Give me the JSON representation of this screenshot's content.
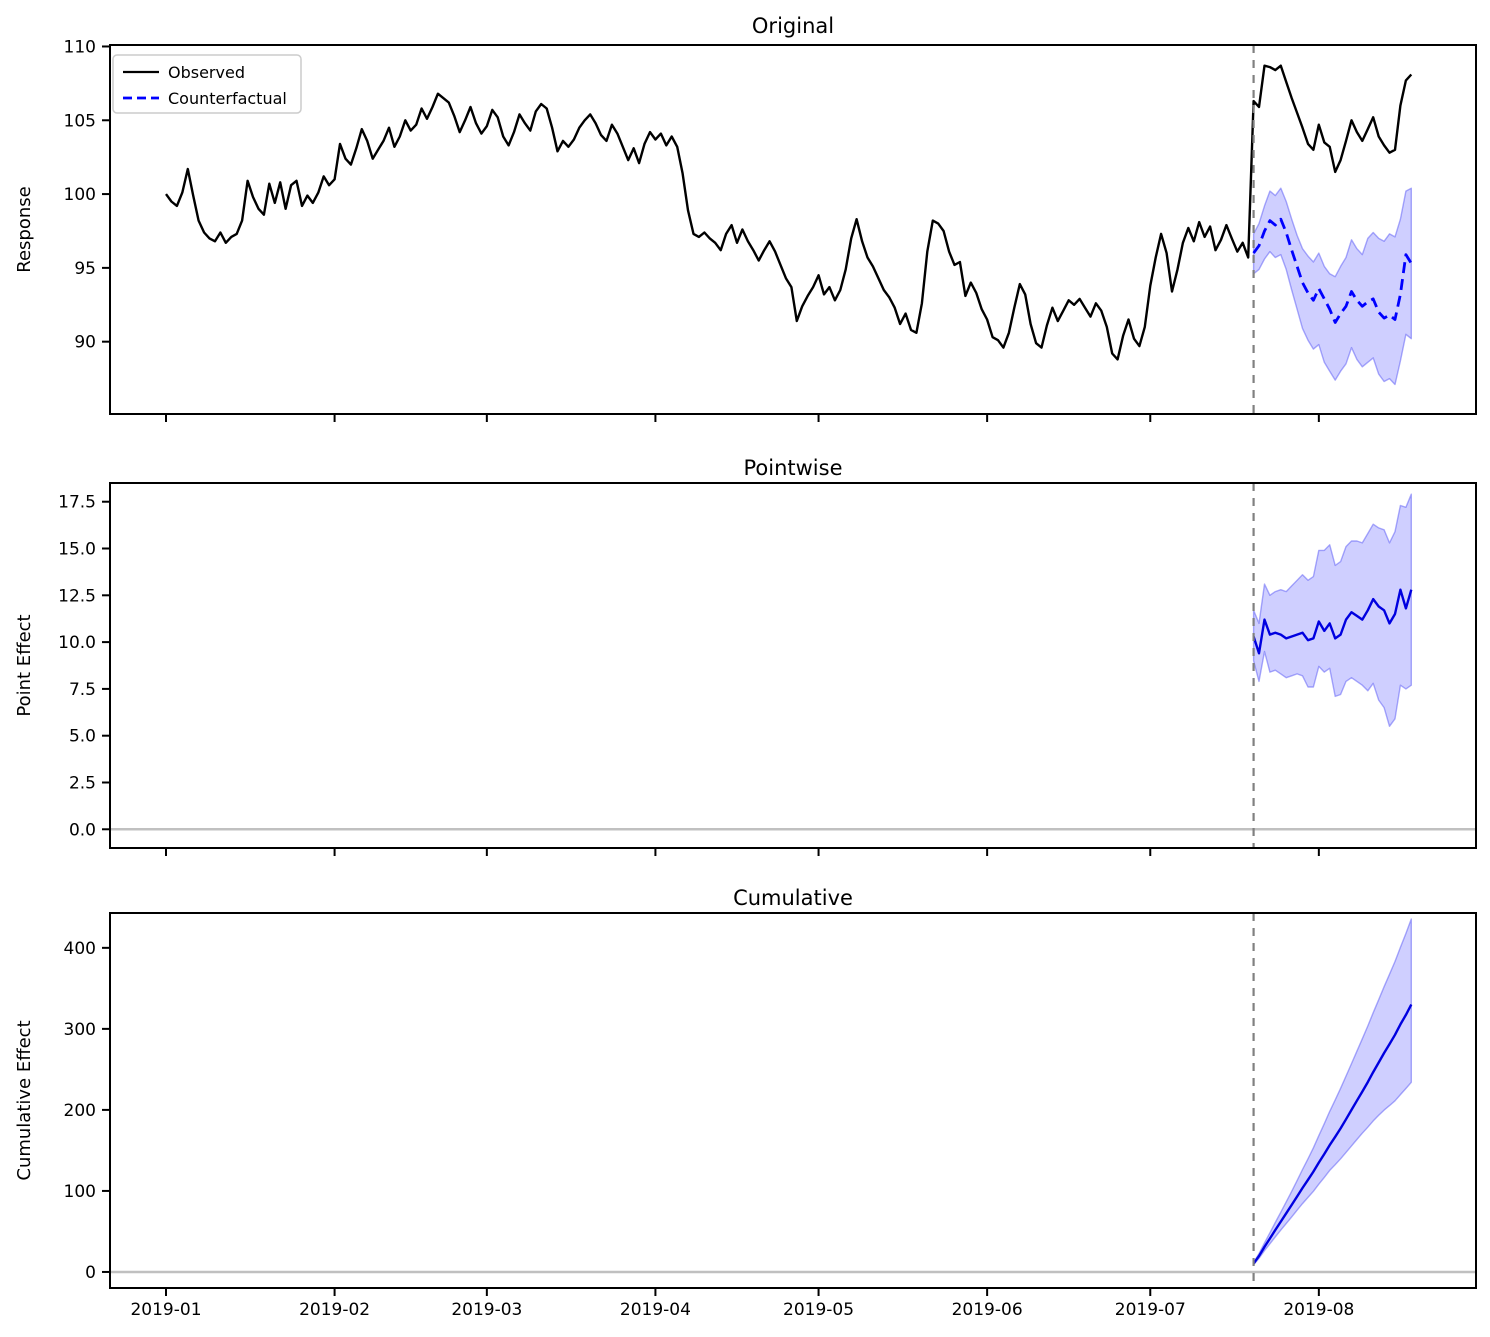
{
  "figure": {
    "kind": "causal-impact-plot",
    "panel_titles": [
      "Original",
      "Pointwise",
      "Cumulative"
    ]
  },
  "chart_data": {
    "type": "line",
    "x_axis": {
      "tick_days": [
        0,
        31,
        59,
        90,
        120,
        151,
        181,
        212
      ],
      "tick_labels": [
        "2019-01",
        "2019-02",
        "2019-03",
        "2019-04",
        "2019-05",
        "2019-06",
        "2019-07",
        "2019-08"
      ],
      "xlim_days": [
        -10.3,
        240.9
      ]
    },
    "intervention_day": 200,
    "colors": {
      "observed": "#000000",
      "counterfactual": "#0000ff",
      "effect": "#0000e0",
      "band": "rgba(0,0,255,0.19)",
      "band_edge": "rgba(70,70,245,0.45)",
      "vline": "#808080",
      "zero_line": "#c0c0c0",
      "frame": "#000000"
    },
    "panels": [
      {
        "title": "Original",
        "ylabel": "Response",
        "ylim": [
          85.1,
          110.1
        ],
        "yticks": [
          90,
          95,
          100,
          105,
          110
        ],
        "ytick_labels": [
          "90",
          "95",
          "100",
          "105",
          "110"
        ],
        "zero_line": false,
        "series": [
          {
            "name": "Observed",
            "role": "observed",
            "style": "solid",
            "color_key": "observed",
            "x_start": 0,
            "values": [
              100.0,
              99.5,
              99.2,
              100.1,
              101.7,
              99.9,
              98.2,
              97.4,
              97.0,
              96.8,
              97.4,
              96.7,
              97.1,
              97.3,
              98.2,
              100.9,
              99.8,
              99.0,
              98.6,
              100.7,
              99.4,
              100.8,
              99.0,
              100.6,
              100.9,
              99.2,
              99.9,
              99.4,
              100.1,
              101.2,
              100.6,
              101.0,
              103.4,
              102.4,
              102.0,
              103.1,
              104.4,
              103.6,
              102.4,
              103.0,
              103.6,
              104.5,
              103.2,
              103.9,
              105.0,
              104.3,
              104.7,
              105.8,
              105.1,
              105.9,
              106.8,
              106.5,
              106.2,
              105.3,
              104.2,
              105.0,
              105.9,
              104.8,
              104.1,
              104.6,
              105.7,
              105.2,
              103.9,
              103.3,
              104.2,
              105.4,
              104.8,
              104.3,
              105.6,
              106.1,
              105.8,
              104.5,
              102.9,
              103.6,
              103.2,
              103.7,
              104.5,
              105.0,
              105.4,
              104.8,
              104.0,
              103.6,
              104.7,
              104.1,
              103.2,
              102.3,
              103.1,
              102.1,
              103.4,
              104.2,
              103.7,
              104.1,
              103.3,
              103.9,
              103.2,
              101.4,
              98.9,
              97.3,
              97.1,
              97.4,
              97.0,
              96.7,
              96.2,
              97.3,
              97.9,
              96.7,
              97.6,
              96.8,
              96.2,
              95.5,
              96.2,
              96.8,
              96.1,
              95.2,
              94.3,
              93.7,
              91.4,
              92.4,
              93.1,
              93.7,
              94.5,
              93.2,
              93.7,
              92.8,
              93.5,
              94.9,
              97.0,
              98.3,
              96.8,
              95.7,
              95.1,
              94.3,
              93.5,
              93.0,
              92.3,
              91.2,
              91.9,
              90.8,
              90.6,
              92.6,
              96.1,
              98.2,
              98.0,
              97.5,
              96.1,
              95.2,
              95.4,
              93.1,
              94.0,
              93.3,
              92.2,
              91.5,
              90.3,
              90.1,
              89.6,
              90.6,
              92.3,
              93.9,
              93.2,
              91.2,
              89.9,
              89.6,
              91.1,
              92.3,
              91.4,
              92.1,
              92.8,
              92.5,
              92.9,
              92.3,
              91.7,
              92.6,
              92.1,
              91.0,
              89.2,
              88.8,
              90.4,
              91.5,
              90.2,
              89.7,
              91.0,
              93.8,
              95.7,
              97.3,
              96.0,
              93.4,
              94.9,
              96.7,
              97.7,
              96.8,
              98.1,
              97.1,
              97.8,
              96.2,
              96.9,
              97.9,
              97.0,
              96.1,
              96.7,
              95.7,
              106.3,
              105.9,
              108.7,
              108.6,
              108.4,
              108.7,
              107.6,
              106.5,
              105.5,
              104.5,
              103.4,
              103.0,
              104.7,
              103.5,
              103.2,
              101.5,
              102.3,
              103.6,
              105.0,
              104.2,
              103.6,
              104.4,
              105.2,
              103.9,
              103.3,
              102.8,
              103.0,
              106.0,
              107.7,
              108.1
            ]
          },
          {
            "name": "Counterfactual",
            "role": "counterfactual",
            "style": "dashed",
            "color_key": "counterfactual",
            "x_start": 200,
            "values": [
              96.0,
              96.5,
              97.5,
              98.2,
              97.9,
              98.3,
              97.4,
              96.2,
              95.1,
              94.0,
              93.3,
              92.8,
              93.6,
              92.9,
              92.2,
              91.3,
              91.9,
              92.4,
              93.4,
              92.8,
              92.4,
              92.7,
              92.9,
              92.0,
              91.6,
              91.8,
              91.5,
              93.2,
              95.9,
              95.3
            ]
          }
        ],
        "band": {
          "x_start": 200,
          "upper": [
            97.3,
            98.0,
            99.2,
            100.2,
            99.9,
            100.4,
            99.5,
            98.3,
            97.2,
            96.3,
            95.8,
            95.4,
            96.0,
            95.1,
            94.6,
            94.4,
            95.1,
            95.7,
            96.9,
            96.3,
            95.9,
            97.0,
            97.4,
            97.0,
            96.8,
            97.3,
            97.1,
            98.3,
            100.2,
            100.4
          ],
          "lower": [
            94.6,
            94.9,
            95.6,
            96.1,
            95.7,
            95.9,
            94.9,
            93.5,
            92.2,
            90.9,
            90.1,
            89.5,
            89.8,
            88.6,
            88.0,
            87.4,
            88.0,
            88.5,
            89.6,
            88.8,
            88.3,
            88.6,
            88.9,
            87.8,
            87.3,
            87.5,
            87.1,
            88.7,
            90.5,
            90.2
          ]
        }
      },
      {
        "title": "Pointwise",
        "ylabel": "Point Effect",
        "ylim": [
          -1.0,
          18.5
        ],
        "yticks": [
          0,
          2.5,
          5,
          7.5,
          10,
          12.5,
          15,
          17.5
        ],
        "ytick_labels": [
          "0.0",
          "2.5",
          "5.0",
          "7.5",
          "10.0",
          "12.5",
          "15.0",
          "17.5"
        ],
        "zero_line": true,
        "series": [
          {
            "name": "Point effect",
            "role": "point-effect",
            "style": "solid",
            "color_key": "effect",
            "x_start": 200,
            "values": [
              10.3,
              9.4,
              11.2,
              10.4,
              10.5,
              10.4,
              10.2,
              10.3,
              10.4,
              10.5,
              10.1,
              10.2,
              11.1,
              10.6,
              11.0,
              10.2,
              10.4,
              11.2,
              11.6,
              11.4,
              11.2,
              11.7,
              12.3,
              11.9,
              11.7,
              11.0,
              11.5,
              12.8,
              11.8,
              12.8
            ]
          }
        ],
        "band": {
          "x_start": 200,
          "upper": [
            11.7,
            11.0,
            13.1,
            12.5,
            12.7,
            12.8,
            12.7,
            13.0,
            13.3,
            13.6,
            13.3,
            13.5,
            14.9,
            14.9,
            15.2,
            14.1,
            14.3,
            15.1,
            15.4,
            15.4,
            15.3,
            15.8,
            16.3,
            16.1,
            16.0,
            15.3,
            15.9,
            17.3,
            17.2,
            17.9
          ],
          "lower": [
            9.0,
            7.9,
            9.5,
            8.4,
            8.5,
            8.3,
            8.1,
            8.2,
            8.3,
            8.2,
            7.6,
            7.6,
            8.7,
            8.4,
            8.6,
            7.1,
            7.2,
            7.9,
            8.1,
            7.9,
            7.7,
            7.4,
            7.8,
            6.9,
            6.5,
            5.5,
            5.9,
            7.7,
            7.5,
            7.7
          ]
        }
      },
      {
        "title": "Cumulative",
        "ylabel": "Cumulative Effect",
        "ylim": [
          -19.8,
          443
        ],
        "yticks": [
          0,
          100,
          200,
          300,
          400
        ],
        "ytick_labels": [
          "0",
          "100",
          "200",
          "300",
          "400"
        ],
        "zero_line": true,
        "series": [
          {
            "name": "Cumulative effect",
            "role": "cumulative-effect",
            "style": "solid",
            "color_key": "effect",
            "x_start": 200,
            "values": [
              10.3,
              19.7,
              30.9,
              41.3,
              51.8,
              62.2,
              72.4,
              82.7,
              93.1,
              103.6,
              113.7,
              123.9,
              135.0,
              145.6,
              156.6,
              166.8,
              177.2,
              188.4,
              200.0,
              211.4,
              222.6,
              234.3,
              246.6,
              258.5,
              270.2,
              281.2,
              292.7,
              305.5,
              317.3,
              330.1
            ]
          }
        ],
        "band": {
          "x_start": 200,
          "upper": [
            11.7,
            22.7,
            35.8,
            48.3,
            61.0,
            73.8,
            86.5,
            99.5,
            112.8,
            126.4,
            139.7,
            153.2,
            168.1,
            183.0,
            198.2,
            212.3,
            226.6,
            241.7,
            257.1,
            272.5,
            287.8,
            303.6,
            319.9,
            336.0,
            352.0,
            367.3,
            383.2,
            400.5,
            417.7,
            435.6
          ],
          "lower": [
            9.0,
            16.9,
            26.4,
            34.8,
            43.3,
            51.6,
            59.7,
            67.9,
            76.2,
            84.4,
            92.0,
            99.6,
            108.3,
            116.7,
            125.3,
            132.4,
            139.6,
            147.5,
            155.6,
            163.5,
            171.2,
            178.6,
            186.4,
            193.3,
            199.8,
            205.3,
            211.2,
            218.9,
            226.4,
            234.1
          ]
        }
      }
    ]
  }
}
